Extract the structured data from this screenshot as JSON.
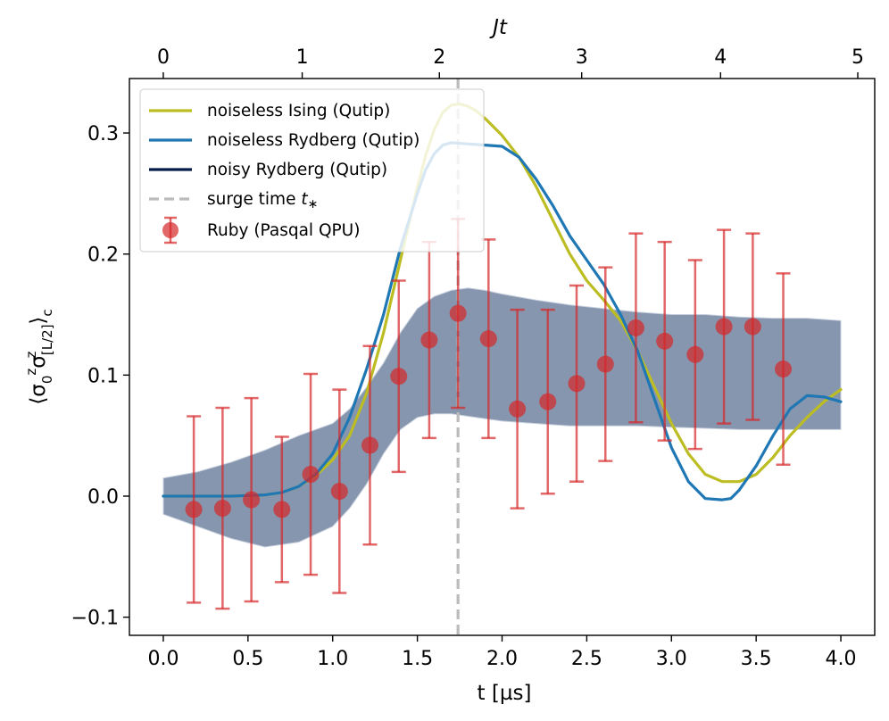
{
  "chart_data": {
    "type": "line",
    "xlabel": "t [µs]",
    "ylabel": "⟨σ₀ᶻσ[L/2]ᶻ⟩c",
    "top_xlabel": "Jt",
    "xlim": [
      -0.2,
      4.2
    ],
    "ylim": [
      -0.115,
      0.345
    ],
    "x_ticks": [
      {
        "value": 0.0,
        "label": "0.0"
      },
      {
        "value": 0.5,
        "label": "0.5"
      },
      {
        "value": 1.0,
        "label": "1.0"
      },
      {
        "value": 1.5,
        "label": "1.5"
      },
      {
        "value": 2.0,
        "label": "2.0"
      },
      {
        "value": 2.5,
        "label": "2.5"
      },
      {
        "value": 3.0,
        "label": "3.0"
      },
      {
        "value": 3.5,
        "label": "3.5"
      },
      {
        "value": 4.0,
        "label": "4.0"
      }
    ],
    "y_ticks": [
      {
        "value": -0.1,
        "label": "−0.1"
      },
      {
        "value": 0.0,
        "label": "0.0"
      },
      {
        "value": 0.1,
        "label": "0.1"
      },
      {
        "value": 0.2,
        "label": "0.2"
      },
      {
        "value": 0.3,
        "label": "0.3"
      }
    ],
    "top_ticks": [
      {
        "t": 0.0,
        "label": "0"
      },
      {
        "t": 0.82,
        "label": "1"
      },
      {
        "t": 1.63,
        "label": "2"
      },
      {
        "t": 2.47,
        "label": "3"
      },
      {
        "t": 3.29,
        "label": "4"
      },
      {
        "t": 4.1,
        "label": "5"
      }
    ],
    "surge_time": 1.74,
    "series": [
      {
        "name": "noiseless Ising (Qutip)",
        "color": "#bcbd22",
        "x": [
          0,
          0.2,
          0.4,
          0.6,
          0.7,
          0.8,
          0.9,
          1.0,
          1.1,
          1.2,
          1.3,
          1.4,
          1.5,
          1.55,
          1.6,
          1.65,
          1.7,
          1.75,
          1.8,
          1.85,
          1.9,
          2.0,
          2.1,
          2.2,
          2.3,
          2.4,
          2.5,
          2.6,
          2.7,
          2.8,
          2.9,
          3.0,
          3.1,
          3.2,
          3.3,
          3.4,
          3.5,
          3.6,
          3.7,
          3.8,
          3.9,
          4.0
        ],
        "y": [
          0,
          0,
          0,
          0.001,
          0.003,
          0.008,
          0.017,
          0.03,
          0.05,
          0.085,
          0.135,
          0.195,
          0.255,
          0.282,
          0.303,
          0.317,
          0.323,
          0.324,
          0.322,
          0.318,
          0.312,
          0.298,
          0.28,
          0.256,
          0.228,
          0.2,
          0.178,
          0.162,
          0.145,
          0.12,
          0.09,
          0.06,
          0.035,
          0.018,
          0.012,
          0.012,
          0.018,
          0.032,
          0.05,
          0.065,
          0.078,
          0.088
        ]
      },
      {
        "name": "noiseless Rydberg (Qutip)",
        "color": "#1f77b4",
        "x": [
          0,
          0.2,
          0.4,
          0.6,
          0.7,
          0.8,
          0.9,
          1.0,
          1.1,
          1.2,
          1.3,
          1.4,
          1.5,
          1.55,
          1.6,
          1.65,
          1.7,
          1.8,
          1.9,
          2.0,
          2.1,
          2.2,
          2.3,
          2.4,
          2.5,
          2.6,
          2.7,
          2.8,
          2.9,
          3.0,
          3.1,
          3.2,
          3.3,
          3.35,
          3.4,
          3.5,
          3.6,
          3.7,
          3.8,
          3.9,
          4.0
        ],
        "y": [
          0,
          0,
          0,
          0.001,
          0.003,
          0.008,
          0.018,
          0.035,
          0.065,
          0.105,
          0.15,
          0.205,
          0.25,
          0.27,
          0.283,
          0.29,
          0.292,
          0.291,
          0.29,
          0.289,
          0.28,
          0.262,
          0.24,
          0.215,
          0.195,
          0.175,
          0.15,
          0.12,
          0.08,
          0.04,
          0.012,
          -0.002,
          -0.003,
          -0.002,
          0.005,
          0.025,
          0.05,
          0.072,
          0.083,
          0.082,
          0.078
        ]
      }
    ],
    "noisy_band": {
      "name": "noisy Rydberg (Qutip)",
      "color": "#071d49",
      "fill": "#8090aa",
      "x": [
        0,
        0.2,
        0.4,
        0.6,
        0.8,
        1.0,
        1.1,
        1.2,
        1.3,
        1.4,
        1.5,
        1.6,
        1.7,
        1.8,
        1.9,
        2.0,
        2.2,
        2.4,
        2.6,
        2.8,
        3.0,
        3.2,
        3.4,
        3.6,
        3.8,
        4.0
      ],
      "upper": [
        0.015,
        0.02,
        0.028,
        0.038,
        0.05,
        0.06,
        0.072,
        0.09,
        0.11,
        0.135,
        0.155,
        0.165,
        0.17,
        0.172,
        0.17,
        0.167,
        0.162,
        0.158,
        0.155,
        0.152,
        0.15,
        0.15,
        0.148,
        0.147,
        0.147,
        0.145
      ],
      "lower": [
        -0.015,
        -0.025,
        -0.035,
        -0.042,
        -0.038,
        -0.025,
        -0.01,
        0.01,
        0.035,
        0.055,
        0.065,
        0.068,
        0.068,
        0.066,
        0.064,
        0.062,
        0.06,
        0.058,
        0.058,
        0.058,
        0.057,
        0.056,
        0.055,
        0.055,
        0.055,
        0.055
      ]
    },
    "ruby": {
      "name": "Ruby (Pasqal QPU)",
      "color": "#d62728",
      "x": [
        0.18,
        0.35,
        0.52,
        0.7,
        0.87,
        1.04,
        1.22,
        1.39,
        1.57,
        1.74,
        1.92,
        2.09,
        2.27,
        2.44,
        2.61,
        2.79,
        2.96,
        3.14,
        3.31,
        3.48,
        3.66
      ],
      "y": [
        -0.011,
        -0.01,
        -0.003,
        -0.011,
        0.018,
        0.004,
        0.042,
        0.099,
        0.129,
        0.151,
        0.13,
        0.072,
        0.078,
        0.093,
        0.109,
        0.139,
        0.128,
        0.117,
        0.14,
        0.14,
        0.105
      ],
      "err": [
        0.077,
        0.083,
        0.084,
        0.06,
        0.083,
        0.084,
        0.082,
        0.079,
        0.081,
        0.078,
        0.082,
        0.082,
        0.076,
        0.081,
        0.08,
        0.078,
        0.082,
        0.078,
        0.08,
        0.077,
        0.079
      ]
    },
    "legend": [
      {
        "label": "noiseless Ising (Qutip)",
        "kind": "line",
        "color": "#bcbd22"
      },
      {
        "label": "noiseless Rydberg (Qutip)",
        "kind": "line",
        "color": "#1f77b4"
      },
      {
        "label": "noisy Rydberg (Qutip)",
        "kind": "line",
        "color": "#071d49"
      },
      {
        "label": "surge time ",
        "label_italic": "t",
        "label_sub": "∗",
        "kind": "dash",
        "color": "#bbbbbb"
      },
      {
        "label": "Ruby (Pasqal QPU)",
        "kind": "errorbar",
        "color": "#d62728"
      }
    ]
  }
}
